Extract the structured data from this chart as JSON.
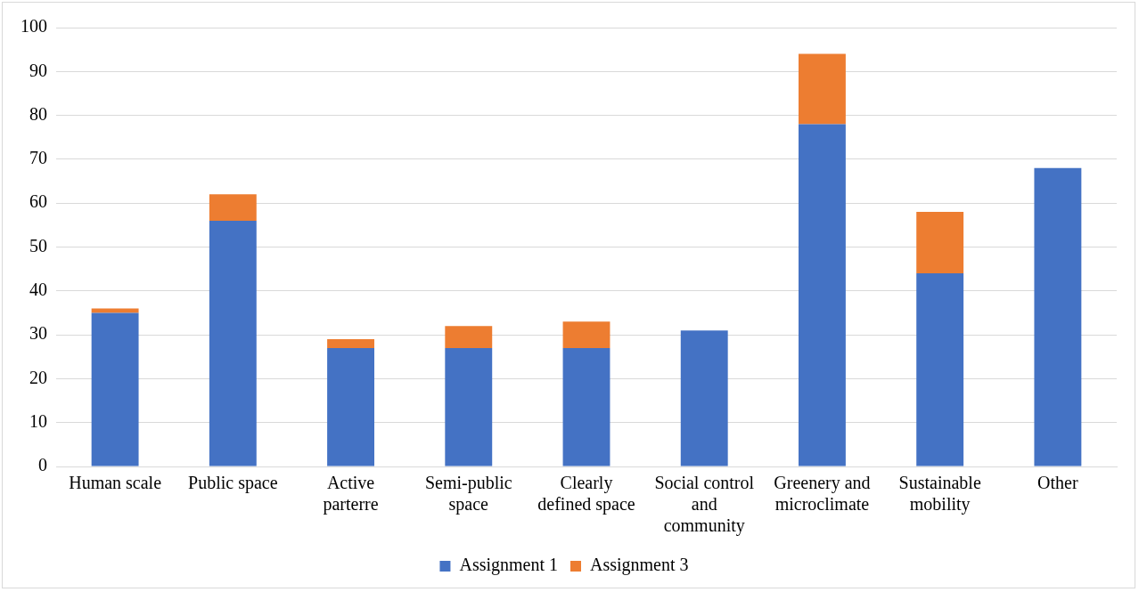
{
  "chart_data": {
    "type": "bar",
    "stacked": true,
    "categories": [
      "Human scale",
      "Public space",
      "Active parterre",
      "Semi-public space",
      "Clearly defined space",
      "Social control and community",
      "Greenery and microclimate",
      "Sustainable mobility",
      "Other"
    ],
    "series": [
      {
        "name": "Assignment 1",
        "color": "#4472c4",
        "values": [
          35,
          56,
          27,
          27,
          27,
          31,
          78,
          44,
          68
        ]
      },
      {
        "name": "Assignment 3",
        "color": "#ed7d31",
        "values": [
          1,
          6,
          2,
          5,
          6,
          0,
          16,
          14,
          0
        ]
      }
    ],
    "ylim": [
      0,
      100
    ],
    "yticks": [
      0,
      10,
      20,
      30,
      40,
      50,
      60,
      70,
      80,
      90,
      100
    ],
    "grid": "y",
    "legend": "bottom"
  }
}
